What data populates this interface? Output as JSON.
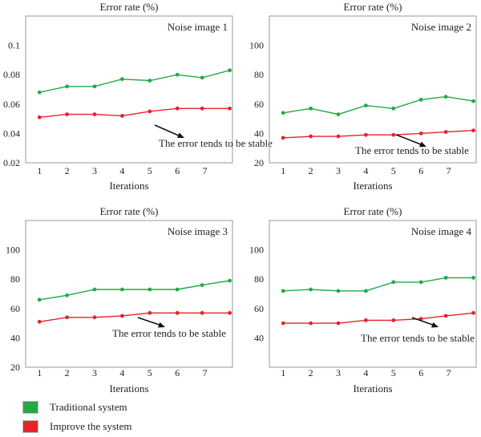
{
  "colors": {
    "traditional": "#22aa44",
    "improved": "#e8222a",
    "frame": "#999999",
    "text": "#222222"
  },
  "legend": {
    "items": [
      {
        "label": "Traditional system",
        "color": "#22aa44"
      },
      {
        "label": "Improve the system",
        "color": "#e8222a"
      }
    ]
  },
  "chart_data": [
    {
      "type": "line",
      "title": "Error rate (%)",
      "panel_label": "Noise image 1",
      "xlabel": "Iterations",
      "ylabel": "",
      "ticks_x": [
        "1",
        "2",
        "3",
        "4",
        "5",
        "6",
        "7"
      ],
      "ticks_y": [
        "0.02",
        "0.04",
        "0.06",
        "0.08",
        "0.1"
      ],
      "ylim": [
        0.02,
        0.12
      ],
      "xlim": [
        0.5,
        8.0
      ],
      "annotation": "The error tends to be stable",
      "series": [
        {
          "name": "Traditional system",
          "x": [
            1,
            2,
            3,
            4,
            5,
            6,
            6.9,
            7.9
          ],
          "values": [
            0.068,
            0.072,
            0.072,
            0.077,
            0.076,
            0.08,
            0.078,
            0.083
          ]
        },
        {
          "name": "Improve the system",
          "x": [
            1,
            2,
            3,
            4,
            5,
            6,
            6.9,
            7.9
          ],
          "values": [
            0.051,
            0.053,
            0.053,
            0.052,
            0.055,
            0.057,
            0.057,
            0.057
          ]
        }
      ]
    },
    {
      "type": "line",
      "title": "Error rate (%)",
      "panel_label": "Noise image 2",
      "xlabel": "Iterations",
      "ylabel": "",
      "ticks_x": [
        "1",
        "2",
        "3",
        "4",
        "5",
        "6",
        "7"
      ],
      "ticks_y": [
        "20",
        "40",
        "60",
        "80",
        "100"
      ],
      "ylim": [
        20,
        120
      ],
      "xlim": [
        0.5,
        8.0
      ],
      "annotation": "The error tends to be stable",
      "series": [
        {
          "name": "Traditional system",
          "x": [
            1,
            2,
            3,
            4,
            5,
            6,
            6.9,
            7.9
          ],
          "values": [
            54,
            57,
            53,
            59,
            57,
            63,
            65,
            62
          ]
        },
        {
          "name": "Improve the system",
          "x": [
            1,
            2,
            3,
            4,
            5,
            6,
            6.9,
            7.9
          ],
          "values": [
            37,
            38,
            38,
            39,
            39,
            40,
            41,
            42
          ]
        }
      ]
    },
    {
      "type": "line",
      "title": "Error rate (%)",
      "panel_label": "Noise image 3",
      "xlabel": "Iterations",
      "ylabel": "",
      "ticks_x": [
        "1",
        "2",
        "3",
        "4",
        "5",
        "6",
        "7"
      ],
      "ticks_y": [
        "20",
        "40",
        "60",
        "80",
        "100"
      ],
      "ylim": [
        20,
        120
      ],
      "xlim": [
        0.5,
        8.0
      ],
      "annotation": "The error tends to be stable",
      "series": [
        {
          "name": "Traditional system",
          "x": [
            1,
            2,
            3,
            4,
            5,
            6,
            6.9,
            7.9
          ],
          "values": [
            66,
            69,
            73,
            73,
            73,
            73,
            76,
            79
          ]
        },
        {
          "name": "Improve the system",
          "x": [
            1,
            2,
            3,
            4,
            5,
            6,
            6.9,
            7.9
          ],
          "values": [
            51,
            54,
            54,
            55,
            57,
            57,
            57,
            57
          ]
        }
      ]
    },
    {
      "type": "line",
      "title": "Error rate (%)",
      "panel_label": "Noise image 4",
      "xlabel": "Iterations",
      "ylabel": "",
      "ticks_x": [
        "1",
        "2",
        "3",
        "4",
        "5",
        "6",
        "7"
      ],
      "ticks_y": [
        "40",
        "60",
        "80",
        "100"
      ],
      "ylim": [
        20,
        120
      ],
      "xlim": [
        0.5,
        8.0
      ],
      "annotation": "The error tends to be stable",
      "series": [
        {
          "name": "Traditional system",
          "x": [
            1,
            2,
            3,
            4,
            5,
            6,
            6.9,
            7.9
          ],
          "values": [
            72,
            73,
            72,
            72,
            78,
            78,
            81,
            81
          ]
        },
        {
          "name": "Improve the system",
          "x": [
            1,
            2,
            3,
            4,
            5,
            6,
            6.9,
            7.9
          ],
          "values": [
            50,
            50,
            50,
            52,
            52,
            53,
            55,
            57
          ]
        }
      ]
    }
  ]
}
